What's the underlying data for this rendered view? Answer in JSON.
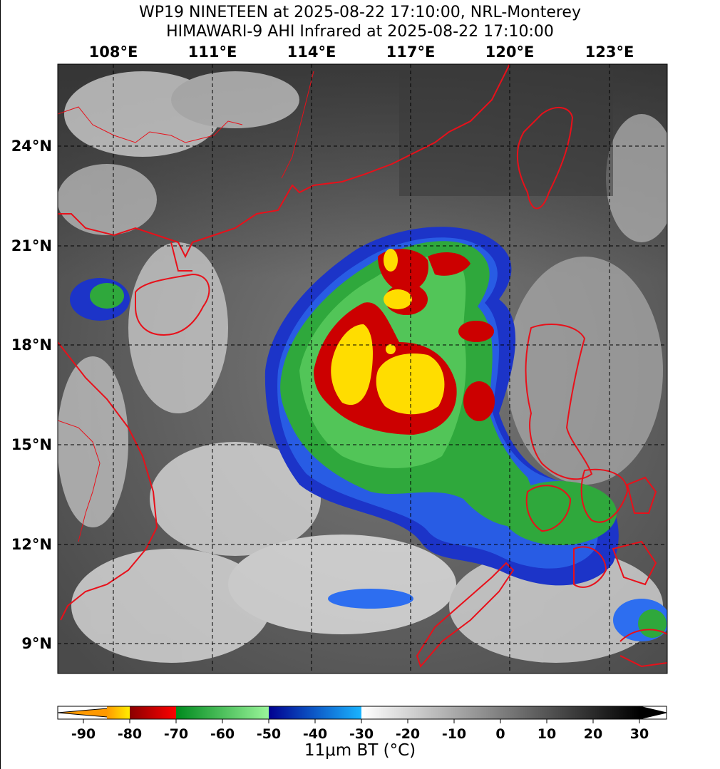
{
  "title": {
    "line1": "WP19 NINETEEN at 2025-08-22 17:10:00, NRL-Monterey",
    "line2": "HIMAWARI-9 AHI Infrared at 2025-08-22 17:10:00"
  },
  "map": {
    "lon_labels": [
      "108°E",
      "111°E",
      "114°E",
      "117°E",
      "120°E",
      "123°E"
    ],
    "lat_labels": [
      "24°N",
      "21°N",
      "18°N",
      "15°N",
      "12°N",
      "9°N"
    ],
    "grid": "dashed",
    "coastline_color": "#e8101a"
  },
  "storm": {
    "name": "WP19 NINETEEN",
    "sensor": "HIMAWARI-9 AHI Infrared"
  },
  "colorbar": {
    "ticks": [
      "-90",
      "-80",
      "-70",
      "-60",
      "-50",
      "-40",
      "-30",
      "-20",
      "-10",
      "0",
      "10",
      "20",
      "30"
    ],
    "label": "11μm BT (°C)",
    "segments": [
      {
        "from": -95,
        "to": -80,
        "c0": "#ff9900",
        "c1": "#ffee00"
      },
      {
        "from": -80,
        "to": -70,
        "c0": "#8a0000",
        "c1": "#ff0000"
      },
      {
        "from": -70,
        "to": -50,
        "c0": "#008a1e",
        "c1": "#9af59a"
      },
      {
        "from": -50,
        "to": -30,
        "c0": "#000090",
        "c1": "#1ab4ff"
      },
      {
        "from": -30,
        "to": 30,
        "c0": "#ffffff",
        "c1": "#000000"
      }
    ]
  }
}
